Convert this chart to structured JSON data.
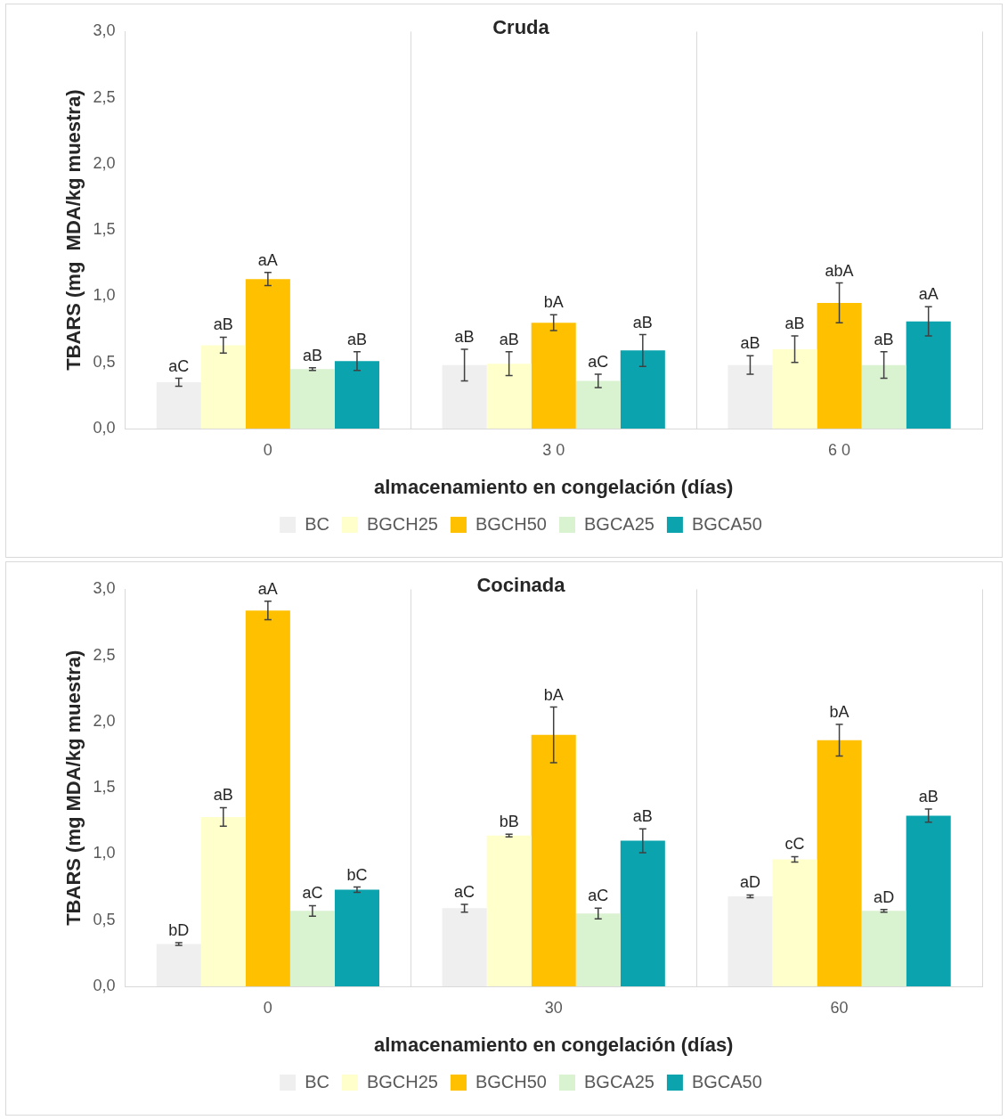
{
  "chart_data": [
    {
      "type": "bar",
      "title": "Cruda",
      "xlabel": "almacenamiento en congelación (días)",
      "ylabel": "TBARS (mg  MDA/kg muestra)",
      "categories": [
        "0",
        "3 0",
        "6 0"
      ],
      "ylim": [
        0,
        3
      ],
      "yticks": [
        {
          "value": 0,
          "label": "0,0"
        },
        {
          "value": 0.5,
          "label": "0,5"
        },
        {
          "value": 1,
          "label": "1,0"
        },
        {
          "value": 1.5,
          "label": "1,5"
        },
        {
          "value": 2,
          "label": "2,0"
        },
        {
          "value": 2.5,
          "label": "2,5"
        },
        {
          "value": 3,
          "label": "3,0"
        }
      ],
      "grid": "x",
      "legend": "bottom",
      "series": [
        {
          "name": "BC",
          "color": "#efefef",
          "values": [
            0.35,
            0.48,
            0.48
          ],
          "errors": [
            0.03,
            0.12,
            0.07
          ],
          "value_labels": [
            "aC",
            "aB",
            "aB"
          ]
        },
        {
          "name": "BGCH25",
          "color": "#ffffcc",
          "values": [
            0.63,
            0.49,
            0.6
          ],
          "errors": [
            0.06,
            0.09,
            0.1
          ],
          "value_labels": [
            "aB",
            "aB",
            "aB"
          ]
        },
        {
          "name": "BGCH50",
          "color": "#ffc000",
          "values": [
            1.13,
            0.8,
            0.95
          ],
          "errors": [
            0.05,
            0.06,
            0.15
          ],
          "value_labels": [
            "aA",
            "bA",
            "abA"
          ]
        },
        {
          "name": "BGCA25",
          "color": "#d9f2d0",
          "values": [
            0.45,
            0.36,
            0.48
          ],
          "errors": [
            0.01,
            0.05,
            0.1
          ],
          "value_labels": [
            "aB",
            "aC",
            "aB"
          ]
        },
        {
          "name": "BGCA50",
          "color": "#0aa3ae",
          "values": [
            0.51,
            0.59,
            0.81
          ],
          "errors": [
            0.07,
            0.12,
            0.11
          ],
          "value_labels": [
            "aB",
            "aB",
            "aA"
          ]
        }
      ]
    },
    {
      "type": "bar",
      "title": "Cocinada",
      "xlabel": "almacenamiento en congelación (días)",
      "ylabel": "TBARS (mg MDA/kg muestra)",
      "categories": [
        "0",
        "30",
        "60"
      ],
      "ylim": [
        0,
        3
      ],
      "yticks": [
        {
          "value": 0,
          "label": "0,0"
        },
        {
          "value": 0.5,
          "label": "0,5"
        },
        {
          "value": 1,
          "label": "1,0"
        },
        {
          "value": 1.5,
          "label": "1,5"
        },
        {
          "value": 2,
          "label": "2,0"
        },
        {
          "value": 2.5,
          "label": "2,5"
        },
        {
          "value": 3,
          "label": "3,0"
        }
      ],
      "grid": "x",
      "legend": "bottom",
      "series": [
        {
          "name": "BC",
          "color": "#efefef",
          "values": [
            0.32,
            0.59,
            0.68
          ],
          "errors": [
            0.01,
            0.03,
            0.01
          ],
          "value_labels": [
            "bD",
            "aC",
            "aD"
          ]
        },
        {
          "name": "BGCH25",
          "color": "#ffffcc",
          "values": [
            1.28,
            1.14,
            0.96
          ],
          "errors": [
            0.07,
            0.01,
            0.02
          ],
          "value_labels": [
            "aB",
            "bB",
            "cC"
          ]
        },
        {
          "name": "BGCH50",
          "color": "#ffc000",
          "values": [
            2.84,
            1.9,
            1.86
          ],
          "errors": [
            0.07,
            0.21,
            0.12
          ],
          "value_labels": [
            "aA",
            "bA",
            "bA"
          ]
        },
        {
          "name": "BGCA25",
          "color": "#d9f2d0",
          "values": [
            0.57,
            0.55,
            0.57
          ],
          "errors": [
            0.04,
            0.04,
            0.01
          ],
          "value_labels": [
            "aC",
            "aC",
            "aD"
          ]
        },
        {
          "name": "BGCA50",
          "color": "#0aa3ae",
          "values": [
            0.73,
            1.1,
            1.29
          ],
          "errors": [
            0.02,
            0.09,
            0.05
          ],
          "value_labels": [
            "bC",
            "aB",
            "aB"
          ]
        }
      ]
    }
  ]
}
